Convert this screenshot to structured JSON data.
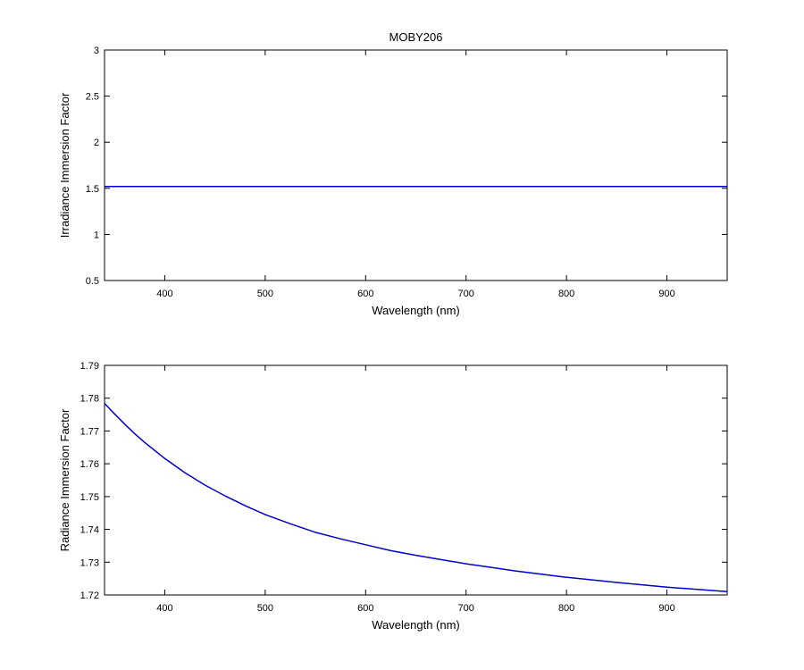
{
  "chart_data": [
    {
      "type": "line",
      "title": "MOBY206",
      "xlabel": "Wavelength  (nm)",
      "ylabel": "Irradiance Immersion Factor",
      "xlim": [
        340,
        960
      ],
      "ylim": [
        0.5,
        3
      ],
      "xticks": [
        400,
        500,
        600,
        700,
        800,
        900
      ],
      "yticks": [
        0.5,
        1,
        1.5,
        2,
        2.5,
        3
      ],
      "ytick_labels": [
        "0.5",
        "1",
        "1.5",
        "2",
        "2.5",
        "3"
      ],
      "grid": false,
      "line_color": "#0000cc",
      "series": [
        {
          "x": [
            340,
            400,
            500,
            600,
            700,
            800,
            900,
            960
          ],
          "y": [
            1.52,
            1.52,
            1.52,
            1.52,
            1.52,
            1.52,
            1.52,
            1.52
          ]
        }
      ]
    },
    {
      "type": "line",
      "title": "",
      "xlabel": "Wavelength  (nm)",
      "ylabel": "Radiance Immersion Factor",
      "xlim": [
        340,
        960
      ],
      "ylim": [
        1.72,
        1.79
      ],
      "xticks": [
        400,
        500,
        600,
        700,
        800,
        900
      ],
      "yticks": [
        1.72,
        1.73,
        1.74,
        1.75,
        1.76,
        1.77,
        1.78,
        1.79
      ],
      "ytick_labels": [
        "1.72",
        "1.73",
        "1.74",
        "1.75",
        "1.76",
        "1.77",
        "1.78",
        "1.79"
      ],
      "grid": false,
      "line_color": "#0000cc",
      "series": [
        {
          "x": [
            340,
            350,
            360,
            370,
            380,
            400,
            420,
            440,
            460,
            480,
            500,
            525,
            550,
            575,
            600,
            625,
            650,
            700,
            750,
            800,
            850,
            900,
            960
          ],
          "y": [
            1.7784,
            1.7752,
            1.7721,
            1.7692,
            1.7665,
            1.7616,
            1.7573,
            1.7535,
            1.7502,
            1.7472,
            1.7445,
            1.7417,
            1.7391,
            1.7371,
            1.7353,
            1.7335,
            1.7321,
            1.7295,
            1.7273,
            1.7254,
            1.7238,
            1.7224,
            1.721
          ]
        }
      ]
    }
  ]
}
